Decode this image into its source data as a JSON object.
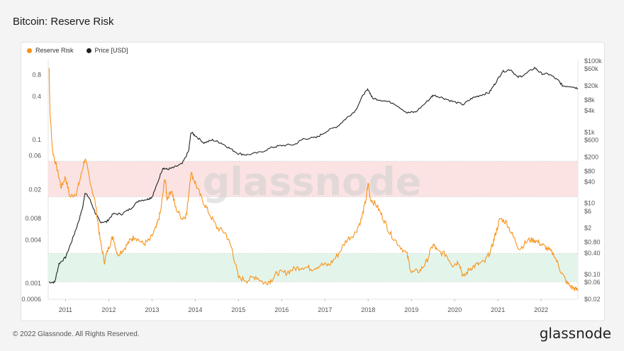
{
  "header": {
    "title": "Bitcoin: Reserve Risk"
  },
  "legend": [
    {
      "label": "Reserve Risk",
      "color": "#f7931a"
    },
    {
      "label": "Price [USD]",
      "color": "#222222"
    }
  ],
  "watermark": "glassnode",
  "footer": {
    "copyright": "© 2022 Glassnode. All Rights Reserved.",
    "logo": "glassnode"
  },
  "chart_data": {
    "type": "line",
    "title": "Bitcoin: Reserve Risk",
    "x_ticks": [
      "2011",
      "2012",
      "2013",
      "2014",
      "2015",
      "2016",
      "2017",
      "2018",
      "2019",
      "2020",
      "2021",
      "2022"
    ],
    "x_range": [
      2010.6,
      2022.85
    ],
    "left_axis": {
      "label": "",
      "scale": "log",
      "range": [
        0.0006,
        1.3
      ],
      "ticks": [
        "0.8",
        "0.4",
        "0.1",
        "0.06",
        "0.02",
        "0.008",
        "0.004",
        "0.001",
        "0.0006"
      ]
    },
    "right_axis": {
      "label": "",
      "scale": "log",
      "range": [
        0.02,
        110000
      ],
      "ticks": [
        "$100k",
        "$60k",
        "$20k",
        "$8k",
        "$4k",
        "$1k",
        "$600",
        "$200",
        "$80",
        "$40",
        "$10",
        "$6",
        "$2",
        "$0.80",
        "$0.40",
        "$0.10",
        "$0.06",
        "$0.02"
      ]
    },
    "bands": [
      {
        "name": "high risk zone",
        "range": [
          0.016,
          0.05
        ],
        "color": "#fbe3e3"
      },
      {
        "name": "low risk zone",
        "range": [
          0.00105,
          0.0026
        ],
        "color": "#e3f5ea"
      }
    ],
    "series": [
      {
        "name": "Reserve Risk",
        "axis": "left",
        "color": "#f7931a",
        "points": [
          [
            2010.62,
            1.0
          ],
          [
            2010.64,
            0.25
          ],
          [
            2010.7,
            0.07
          ],
          [
            2010.8,
            0.04
          ],
          [
            2010.9,
            0.022
          ],
          [
            2011.0,
            0.03
          ],
          [
            2011.1,
            0.016
          ],
          [
            2011.25,
            0.018
          ],
          [
            2011.35,
            0.03
          ],
          [
            2011.45,
            0.055
          ],
          [
            2011.55,
            0.03
          ],
          [
            2011.7,
            0.012
          ],
          [
            2011.8,
            0.004
          ],
          [
            2011.9,
            0.002
          ],
          [
            2012.0,
            0.0032
          ],
          [
            2012.1,
            0.0045
          ],
          [
            2012.2,
            0.0025
          ],
          [
            2012.35,
            0.003
          ],
          [
            2012.5,
            0.004
          ],
          [
            2012.6,
            0.0045
          ],
          [
            2012.8,
            0.0035
          ],
          [
            2012.95,
            0.004
          ],
          [
            2013.1,
            0.006
          ],
          [
            2013.2,
            0.01
          ],
          [
            2013.3,
            0.03
          ],
          [
            2013.35,
            0.015
          ],
          [
            2013.45,
            0.02
          ],
          [
            2013.55,
            0.011
          ],
          [
            2013.7,
            0.008
          ],
          [
            2013.8,
            0.009
          ],
          [
            2013.9,
            0.035
          ],
          [
            2014.0,
            0.025
          ],
          [
            2014.15,
            0.015
          ],
          [
            2014.3,
            0.01
          ],
          [
            2014.5,
            0.006
          ],
          [
            2014.7,
            0.005
          ],
          [
            2014.85,
            0.003
          ],
          [
            2015.0,
            0.0012
          ],
          [
            2015.2,
            0.0011
          ],
          [
            2015.4,
            0.00125
          ],
          [
            2015.6,
            0.001
          ],
          [
            2015.75,
            0.0011
          ],
          [
            2015.9,
            0.0014
          ],
          [
            2016.1,
            0.0014
          ],
          [
            2016.3,
            0.0016
          ],
          [
            2016.5,
            0.0017
          ],
          [
            2016.7,
            0.0016
          ],
          [
            2016.9,
            0.0018
          ],
          [
            2017.1,
            0.0018
          ],
          [
            2017.3,
            0.0025
          ],
          [
            2017.5,
            0.004
          ],
          [
            2017.7,
            0.005
          ],
          [
            2017.85,
            0.008
          ],
          [
            2017.95,
            0.015
          ],
          [
            2018.0,
            0.025
          ],
          [
            2018.05,
            0.015
          ],
          [
            2018.2,
            0.012
          ],
          [
            2018.35,
            0.008
          ],
          [
            2018.5,
            0.005
          ],
          [
            2018.7,
            0.0035
          ],
          [
            2018.9,
            0.0025
          ],
          [
            2019.0,
            0.0014
          ],
          [
            2019.2,
            0.0015
          ],
          [
            2019.35,
            0.002
          ],
          [
            2019.5,
            0.0035
          ],
          [
            2019.6,
            0.0028
          ],
          [
            2019.8,
            0.0025
          ],
          [
            2019.95,
            0.0018
          ],
          [
            2020.1,
            0.002
          ],
          [
            2020.2,
            0.0012
          ],
          [
            2020.35,
            0.0016
          ],
          [
            2020.5,
            0.0018
          ],
          [
            2020.7,
            0.002
          ],
          [
            2020.85,
            0.003
          ],
          [
            2020.95,
            0.005
          ],
          [
            2021.05,
            0.008
          ],
          [
            2021.2,
            0.007
          ],
          [
            2021.35,
            0.0045
          ],
          [
            2021.5,
            0.003
          ],
          [
            2021.7,
            0.004
          ],
          [
            2021.85,
            0.004
          ],
          [
            2022.0,
            0.0035
          ],
          [
            2022.15,
            0.003
          ],
          [
            2022.3,
            0.0025
          ],
          [
            2022.45,
            0.0015
          ],
          [
            2022.6,
            0.001
          ],
          [
            2022.75,
            0.00085
          ],
          [
            2022.85,
            0.0008
          ]
        ]
      },
      {
        "name": "Price [USD]",
        "axis": "right",
        "color": "#222222",
        "points": [
          [
            2010.62,
            0.06
          ],
          [
            2010.75,
            0.06
          ],
          [
            2010.85,
            0.2
          ],
          [
            2011.0,
            0.3
          ],
          [
            2011.15,
            0.9
          ],
          [
            2011.3,
            3
          ],
          [
            2011.4,
            8
          ],
          [
            2011.45,
            20
          ],
          [
            2011.55,
            14
          ],
          [
            2011.7,
            5
          ],
          [
            2011.8,
            3
          ],
          [
            2011.95,
            3
          ],
          [
            2012.1,
            5
          ],
          [
            2012.3,
            5
          ],
          [
            2012.5,
            7
          ],
          [
            2012.7,
            12
          ],
          [
            2012.9,
            13
          ],
          [
            2013.0,
            15
          ],
          [
            2013.1,
            30
          ],
          [
            2013.25,
            100
          ],
          [
            2013.35,
            90
          ],
          [
            2013.5,
            100
          ],
          [
            2013.7,
            130
          ],
          [
            2013.85,
            300
          ],
          [
            2013.9,
            1000
          ],
          [
            2014.0,
            800
          ],
          [
            2014.2,
            500
          ],
          [
            2014.4,
            600
          ],
          [
            2014.6,
            500
          ],
          [
            2014.8,
            350
          ],
          [
            2015.0,
            250
          ],
          [
            2015.2,
            230
          ],
          [
            2015.5,
            270
          ],
          [
            2015.8,
            380
          ],
          [
            2016.0,
            420
          ],
          [
            2016.3,
            450
          ],
          [
            2016.5,
            650
          ],
          [
            2016.8,
            700
          ],
          [
            2017.0,
            1000
          ],
          [
            2017.3,
            1500
          ],
          [
            2017.5,
            2500
          ],
          [
            2017.7,
            4000
          ],
          [
            2017.9,
            12000
          ],
          [
            2018.0,
            16000
          ],
          [
            2018.1,
            9000
          ],
          [
            2018.3,
            8000
          ],
          [
            2018.6,
            6500
          ],
          [
            2018.9,
            3500
          ],
          [
            2019.1,
            3700
          ],
          [
            2019.4,
            8000
          ],
          [
            2019.5,
            11000
          ],
          [
            2019.7,
            9500
          ],
          [
            2019.95,
            7300
          ],
          [
            2020.2,
            6000
          ],
          [
            2020.4,
            9000
          ],
          [
            2020.6,
            11000
          ],
          [
            2020.8,
            13000
          ],
          [
            2020.95,
            25000
          ],
          [
            2021.1,
            50000
          ],
          [
            2021.3,
            58000
          ],
          [
            2021.45,
            35000
          ],
          [
            2021.6,
            40000
          ],
          [
            2021.85,
            65000
          ],
          [
            2022.0,
            45000
          ],
          [
            2022.2,
            42000
          ],
          [
            2022.4,
            28000
          ],
          [
            2022.5,
            20000
          ],
          [
            2022.7,
            19500
          ],
          [
            2022.85,
            17000
          ]
        ]
      }
    ]
  }
}
